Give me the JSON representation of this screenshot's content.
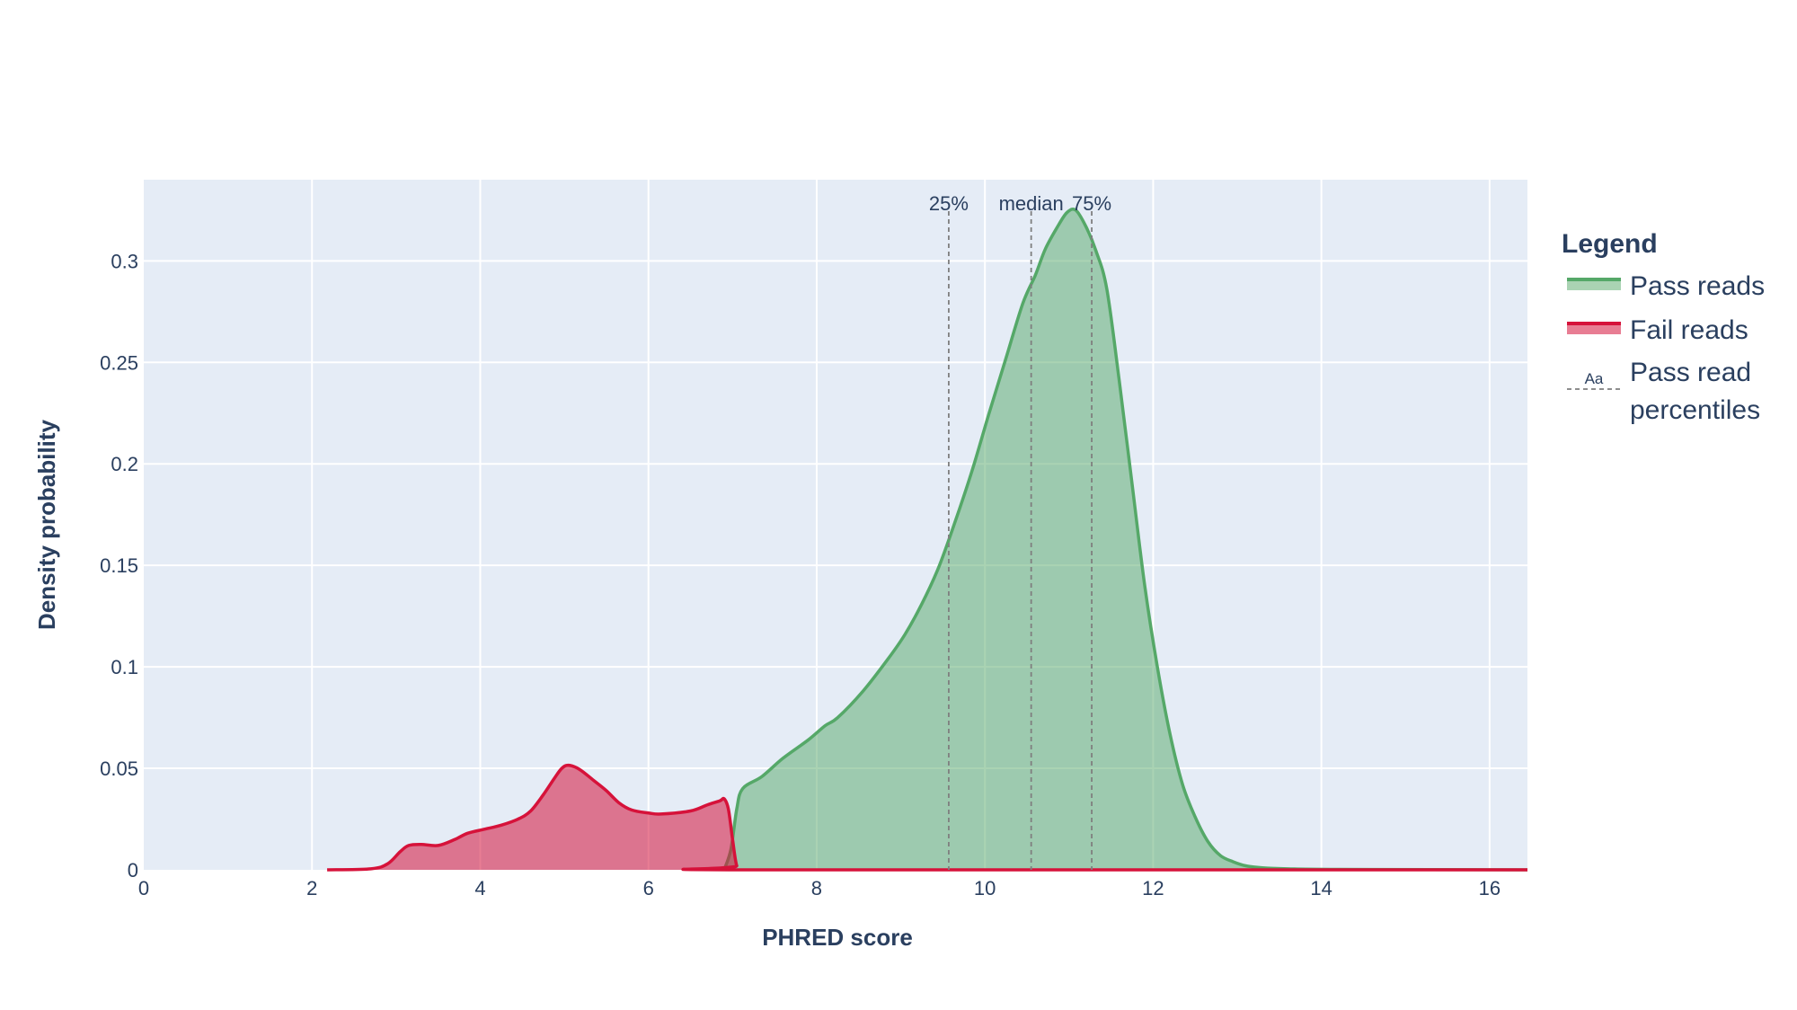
{
  "chart_data": {
    "type": "area",
    "xlabel": "PHRED score",
    "ylabel": "Density probability",
    "xlim": [
      0,
      16.45
    ],
    "ylim": [
      0,
      0.34
    ],
    "x_ticks": [
      0,
      2,
      4,
      6,
      8,
      10,
      12,
      14,
      16
    ],
    "y_ticks": [
      0,
      0.05,
      0.1,
      0.15,
      0.2,
      0.25,
      0.3
    ],
    "y_tick_labels": [
      "0",
      "0.05",
      "0.1",
      "0.15",
      "0.2",
      "0.25",
      "0.3"
    ],
    "grid": true,
    "legend": {
      "title": "Legend",
      "placement": "right",
      "entries": [
        {
          "label": "Pass reads",
          "kind": "area",
          "color": "#55a868"
        },
        {
          "label": "Fail reads",
          "kind": "area",
          "color": "#d6123a"
        },
        {
          "label_lines": [
            "Pass read",
            "percentiles"
          ],
          "kind": "annotation",
          "symbol_text": "Aa",
          "color": "#7f7f7f"
        }
      ]
    },
    "series": [
      {
        "name": "Pass reads",
        "color": "#55a868",
        "fill": "rgba(85,168,104,0.5)",
        "points": [
          [
            6.9,
            0
          ],
          [
            6.98,
            0.01
          ],
          [
            7.05,
            0.03
          ],
          [
            7.12,
            0.04
          ],
          [
            7.35,
            0.046
          ],
          [
            7.6,
            0.055
          ],
          [
            7.9,
            0.064
          ],
          [
            8.1,
            0.071
          ],
          [
            8.25,
            0.075
          ],
          [
            8.55,
            0.088
          ],
          [
            8.85,
            0.104
          ],
          [
            9.05,
            0.116
          ],
          [
            9.25,
            0.131
          ],
          [
            9.45,
            0.149
          ],
          [
            9.65,
            0.172
          ],
          [
            9.85,
            0.197
          ],
          [
            10.05,
            0.225
          ],
          [
            10.25,
            0.252
          ],
          [
            10.45,
            0.279
          ],
          [
            10.6,
            0.293
          ],
          [
            10.72,
            0.306
          ],
          [
            10.88,
            0.318
          ],
          [
            10.98,
            0.324
          ],
          [
            11.08,
            0.325
          ],
          [
            11.2,
            0.317
          ],
          [
            11.32,
            0.305
          ],
          [
            11.45,
            0.286
          ],
          [
            11.6,
            0.24
          ],
          [
            11.75,
            0.19
          ],
          [
            11.9,
            0.14
          ],
          [
            12.05,
            0.1
          ],
          [
            12.2,
            0.067
          ],
          [
            12.35,
            0.042
          ],
          [
            12.5,
            0.026
          ],
          [
            12.65,
            0.014
          ],
          [
            12.8,
            0.007
          ],
          [
            12.95,
            0.004
          ],
          [
            13.1,
            0.002
          ],
          [
            13.3,
            0.001
          ],
          [
            13.6,
            0.0005
          ],
          [
            14.2,
            0.0002
          ],
          [
            16.45,
            0
          ]
        ]
      },
      {
        "name": "Fail reads",
        "color": "#d6123a",
        "fill": "rgba(214,18,58,0.55)",
        "points": [
          [
            2.18,
            0
          ],
          [
            2.7,
            0.0005
          ],
          [
            2.9,
            0.003
          ],
          [
            3.05,
            0.009
          ],
          [
            3.15,
            0.012
          ],
          [
            3.3,
            0.0125
          ],
          [
            3.5,
            0.012
          ],
          [
            3.7,
            0.015
          ],
          [
            3.85,
            0.018
          ],
          [
            4.05,
            0.02
          ],
          [
            4.25,
            0.022
          ],
          [
            4.45,
            0.025
          ],
          [
            4.6,
            0.029
          ],
          [
            4.75,
            0.037
          ],
          [
            4.88,
            0.045
          ],
          [
            4.97,
            0.05
          ],
          [
            5.05,
            0.0515
          ],
          [
            5.18,
            0.0495
          ],
          [
            5.35,
            0.044
          ],
          [
            5.5,
            0.039
          ],
          [
            5.65,
            0.033
          ],
          [
            5.8,
            0.0295
          ],
          [
            6.0,
            0.028
          ],
          [
            6.15,
            0.0275
          ],
          [
            6.5,
            0.029
          ],
          [
            6.7,
            0.032
          ],
          [
            6.85,
            0.034
          ],
          [
            6.9,
            0.035
          ],
          [
            6.95,
            0.03
          ],
          [
            7.0,
            0.015
          ],
          [
            7.05,
            0.002
          ],
          [
            7.12,
            0
          ],
          [
            16.45,
            0
          ]
        ]
      }
    ],
    "percentile_lines": [
      {
        "label": "25%",
        "x": 9.57
      },
      {
        "label": "median",
        "x": 10.55
      },
      {
        "label": "75%",
        "x": 11.27
      }
    ]
  }
}
